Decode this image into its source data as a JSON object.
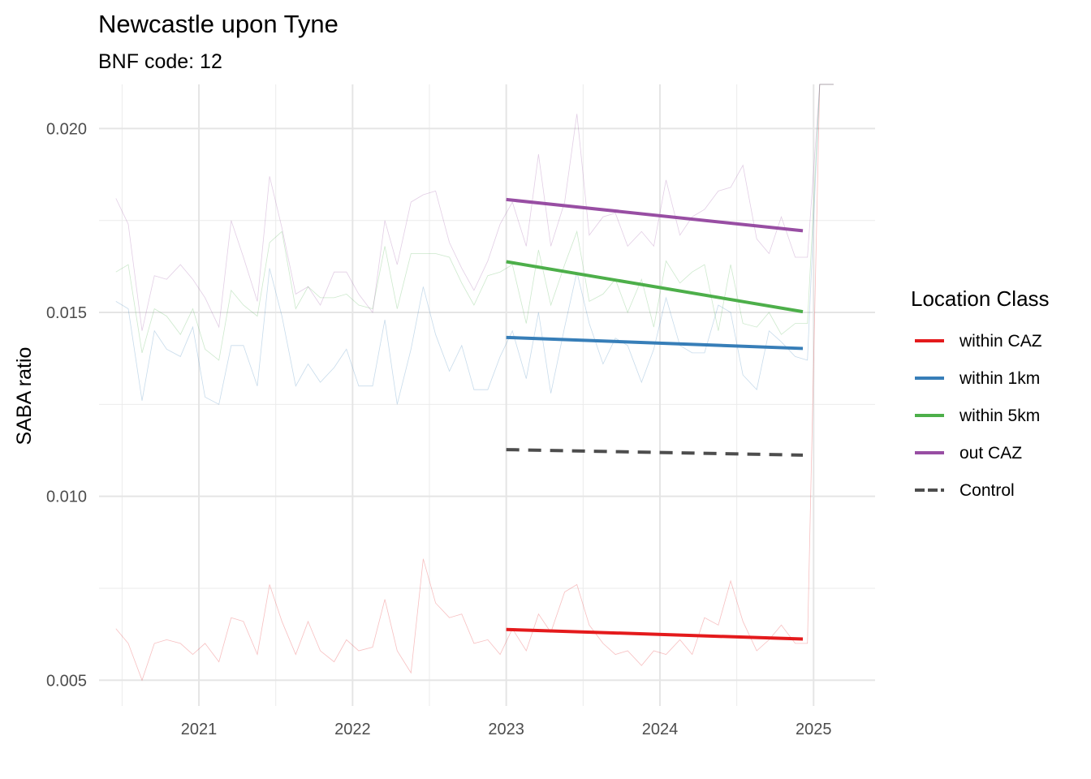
{
  "chart_data": {
    "type": "line",
    "title": "Newcastle upon Tyne",
    "subtitle": "BNF code: 12",
    "ylabel": "SABA ratio",
    "xlabel": "",
    "x_ticks": [
      "2021",
      "2022",
      "2023",
      "2024",
      "2025"
    ],
    "x_tick_values": [
      2021,
      2022,
      2023,
      2024,
      2025
    ],
    "y_ticks": [
      "0.005",
      "0.010",
      "0.015",
      "0.020"
    ],
    "y_tick_values": [
      0.005,
      0.01,
      0.015,
      0.02
    ],
    "xlim": [
      2020.35,
      2025.4
    ],
    "ylim": [
      0.0043,
      0.0212
    ],
    "grid": true,
    "legend": {
      "title": "Location Class",
      "placement": "right",
      "entries": [
        {
          "label": "within CAZ",
          "color": "#E41A1C",
          "dashed": false
        },
        {
          "label": "within 1km",
          "color": "#377EB8",
          "dashed": false
        },
        {
          "label": "within 5km",
          "color": "#4DAF4A",
          "dashed": false
        },
        {
          "label": "out CAZ",
          "color": "#984EA3",
          "dashed": false
        },
        {
          "label": "Control",
          "color": "#4D4D4D",
          "dashed": true
        }
      ]
    },
    "raw_x": [
      2020.46,
      2020.54,
      2020.63,
      2020.71,
      2020.79,
      2020.88,
      2020.96,
      2021.04,
      2021.13,
      2021.21,
      2021.29,
      2021.38,
      2021.46,
      2021.54,
      2021.63,
      2021.71,
      2021.79,
      2021.88,
      2021.96,
      2022.04,
      2022.13,
      2022.21,
      2022.29,
      2022.38,
      2022.46,
      2022.54,
      2022.63,
      2022.71,
      2022.79,
      2022.88,
      2022.96,
      2023.04,
      2023.13,
      2023.21,
      2023.29,
      2023.38,
      2023.46,
      2023.54,
      2023.63,
      2023.71,
      2023.79,
      2023.88,
      2023.96,
      2024.04,
      2024.13,
      2024.21,
      2024.29,
      2024.38,
      2024.46,
      2024.54,
      2024.63,
      2024.71,
      2024.79,
      2024.88,
      2024.96,
      2025.04,
      2025.13
    ],
    "raw_series": [
      {
        "name": "within CAZ",
        "color": "#E41A1C",
        "values": [
          0.0064,
          0.006,
          0.005,
          0.006,
          0.0061,
          0.006,
          0.0057,
          0.006,
          0.0055,
          0.0067,
          0.0066,
          0.0057,
          0.0076,
          0.0066,
          0.0057,
          0.0066,
          0.0058,
          0.0055,
          0.0061,
          0.0058,
          0.0059,
          0.0072,
          0.0058,
          0.0052,
          0.0083,
          0.0071,
          0.0067,
          0.0068,
          0.006,
          0.0061,
          0.0057,
          0.0064,
          0.0058,
          0.0068,
          0.0063,
          0.0074,
          0.0076,
          0.0065,
          0.006,
          0.0057,
          0.0058,
          0.0054,
          0.0058,
          0.0057,
          0.0061,
          0.0057,
          0.0067,
          0.0065,
          0.0077,
          0.0066,
          0.0058,
          0.0061,
          0.0065,
          0.006,
          0.006,
          0.0212,
          0.0212
        ]
      },
      {
        "name": "within 1km",
        "color": "#377EB8",
        "values": [
          0.0153,
          0.0151,
          0.0126,
          0.0145,
          0.014,
          0.0138,
          0.0146,
          0.0127,
          0.0125,
          0.0141,
          0.0141,
          0.013,
          0.0162,
          0.0149,
          0.013,
          0.0136,
          0.0131,
          0.0135,
          0.014,
          0.013,
          0.013,
          0.0148,
          0.0125,
          0.014,
          0.0157,
          0.0144,
          0.0134,
          0.0141,
          0.0129,
          0.0129,
          0.0138,
          0.0145,
          0.0132,
          0.015,
          0.0128,
          0.0146,
          0.0161,
          0.0147,
          0.0136,
          0.0143,
          0.0141,
          0.0131,
          0.014,
          0.0154,
          0.0141,
          0.0139,
          0.0139,
          0.0152,
          0.015,
          0.0133,
          0.0129,
          0.0145,
          0.0142,
          0.0138,
          0.0137,
          0.0212,
          0.0212
        ]
      },
      {
        "name": "within 5km",
        "color": "#4DAF4A",
        "values": [
          0.0161,
          0.0163,
          0.0139,
          0.0151,
          0.0149,
          0.0144,
          0.0151,
          0.014,
          0.0137,
          0.0156,
          0.0152,
          0.0149,
          0.0169,
          0.0172,
          0.0151,
          0.0157,
          0.0154,
          0.0154,
          0.0155,
          0.0152,
          0.0151,
          0.0168,
          0.0151,
          0.0166,
          0.0166,
          0.0166,
          0.0165,
          0.0158,
          0.0152,
          0.016,
          0.0161,
          0.0163,
          0.0147,
          0.0167,
          0.0152,
          0.0163,
          0.0172,
          0.0153,
          0.0155,
          0.0159,
          0.015,
          0.0159,
          0.0146,
          0.0164,
          0.0158,
          0.0161,
          0.0163,
          0.0145,
          0.0163,
          0.0147,
          0.0146,
          0.015,
          0.0144,
          0.0147,
          0.0147,
          0.0212,
          0.0212
        ]
      },
      {
        "name": "out CAZ",
        "color": "#984EA3",
        "values": [
          0.0181,
          0.0174,
          0.0145,
          0.016,
          0.0159,
          0.0163,
          0.0159,
          0.0154,
          0.0146,
          0.0175,
          0.0165,
          0.0153,
          0.0187,
          0.0173,
          0.0155,
          0.0157,
          0.0152,
          0.0161,
          0.0161,
          0.0155,
          0.015,
          0.0175,
          0.0163,
          0.018,
          0.0182,
          0.0183,
          0.0169,
          0.0162,
          0.0156,
          0.0164,
          0.0174,
          0.018,
          0.0168,
          0.0193,
          0.0168,
          0.018,
          0.0204,
          0.0171,
          0.0176,
          0.0177,
          0.0168,
          0.0172,
          0.0168,
          0.0186,
          0.0171,
          0.0176,
          0.0178,
          0.0183,
          0.0184,
          0.019,
          0.017,
          0.0166,
          0.0176,
          0.0165,
          0.0165,
          0.0212,
          0.0212
        ]
      }
    ],
    "trend_x": [
      2023.0,
      2024.93
    ],
    "trend_series": [
      {
        "name": "within CAZ",
        "color": "#E41A1C",
        "values": [
          0.00638,
          0.00612
        ],
        "dashed": false
      },
      {
        "name": "within 1km",
        "color": "#377EB8",
        "values": [
          0.01432,
          0.01402
        ],
        "dashed": false
      },
      {
        "name": "within 5km",
        "color": "#4DAF4A",
        "values": [
          0.01638,
          0.01502
        ],
        "dashed": false
      },
      {
        "name": "out CAZ",
        "color": "#984EA3",
        "values": [
          0.01807,
          0.01722
        ],
        "dashed": false
      },
      {
        "name": "Control",
        "color": "#4D4D4D",
        "values": [
          0.01127,
          0.01112
        ],
        "dashed": true
      }
    ]
  }
}
